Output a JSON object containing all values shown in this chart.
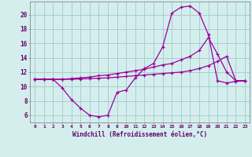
{
  "xlabel": "Windchill (Refroidissement éolien,°C)",
  "background_color": "#d4eeee",
  "grid_color": "#aacccc",
  "line_color": "#990099",
  "x_ticks": [
    0,
    1,
    2,
    3,
    4,
    5,
    6,
    7,
    8,
    9,
    10,
    11,
    12,
    13,
    14,
    15,
    16,
    17,
    18,
    19,
    20,
    21,
    22,
    23
  ],
  "y_ticks": [
    6,
    8,
    10,
    12,
    14,
    16,
    18,
    20
  ],
  "ylim": [
    5.0,
    21.8
  ],
  "xlim": [
    -0.5,
    23.5
  ],
  "line1_x": [
    0,
    1,
    2,
    3,
    4,
    5,
    6,
    7,
    8,
    9,
    10,
    11,
    12,
    13,
    14,
    15,
    16,
    17,
    18,
    19,
    20,
    21,
    22,
    23
  ],
  "line1_y": [
    11.0,
    11.0,
    11.0,
    9.8,
    8.2,
    7.0,
    6.0,
    5.8,
    6.0,
    9.2,
    9.5,
    11.2,
    12.5,
    13.2,
    15.5,
    20.2,
    21.0,
    21.2,
    20.2,
    17.2,
    10.8,
    10.5,
    10.7,
    10.8
  ],
  "line2_x": [
    0,
    1,
    2,
    3,
    4,
    5,
    6,
    7,
    8,
    9,
    10,
    11,
    12,
    13,
    14,
    15,
    16,
    17,
    18,
    19,
    20,
    21,
    22,
    23
  ],
  "line2_y": [
    11.0,
    11.0,
    11.0,
    11.0,
    11.1,
    11.2,
    11.3,
    11.5,
    11.6,
    11.8,
    12.0,
    12.2,
    12.4,
    12.7,
    13.0,
    13.2,
    13.7,
    14.2,
    15.0,
    16.8,
    14.5,
    12.0,
    10.8,
    10.8
  ],
  "line3_x": [
    0,
    1,
    2,
    3,
    4,
    5,
    6,
    7,
    8,
    9,
    10,
    11,
    12,
    13,
    14,
    15,
    16,
    17,
    18,
    19,
    20,
    21,
    22,
    23
  ],
  "line3_y": [
    11.0,
    11.0,
    11.0,
    11.0,
    11.0,
    11.05,
    11.1,
    11.15,
    11.2,
    11.3,
    11.4,
    11.5,
    11.6,
    11.7,
    11.8,
    11.9,
    12.0,
    12.2,
    12.5,
    12.9,
    13.5,
    14.2,
    10.8,
    10.8
  ]
}
